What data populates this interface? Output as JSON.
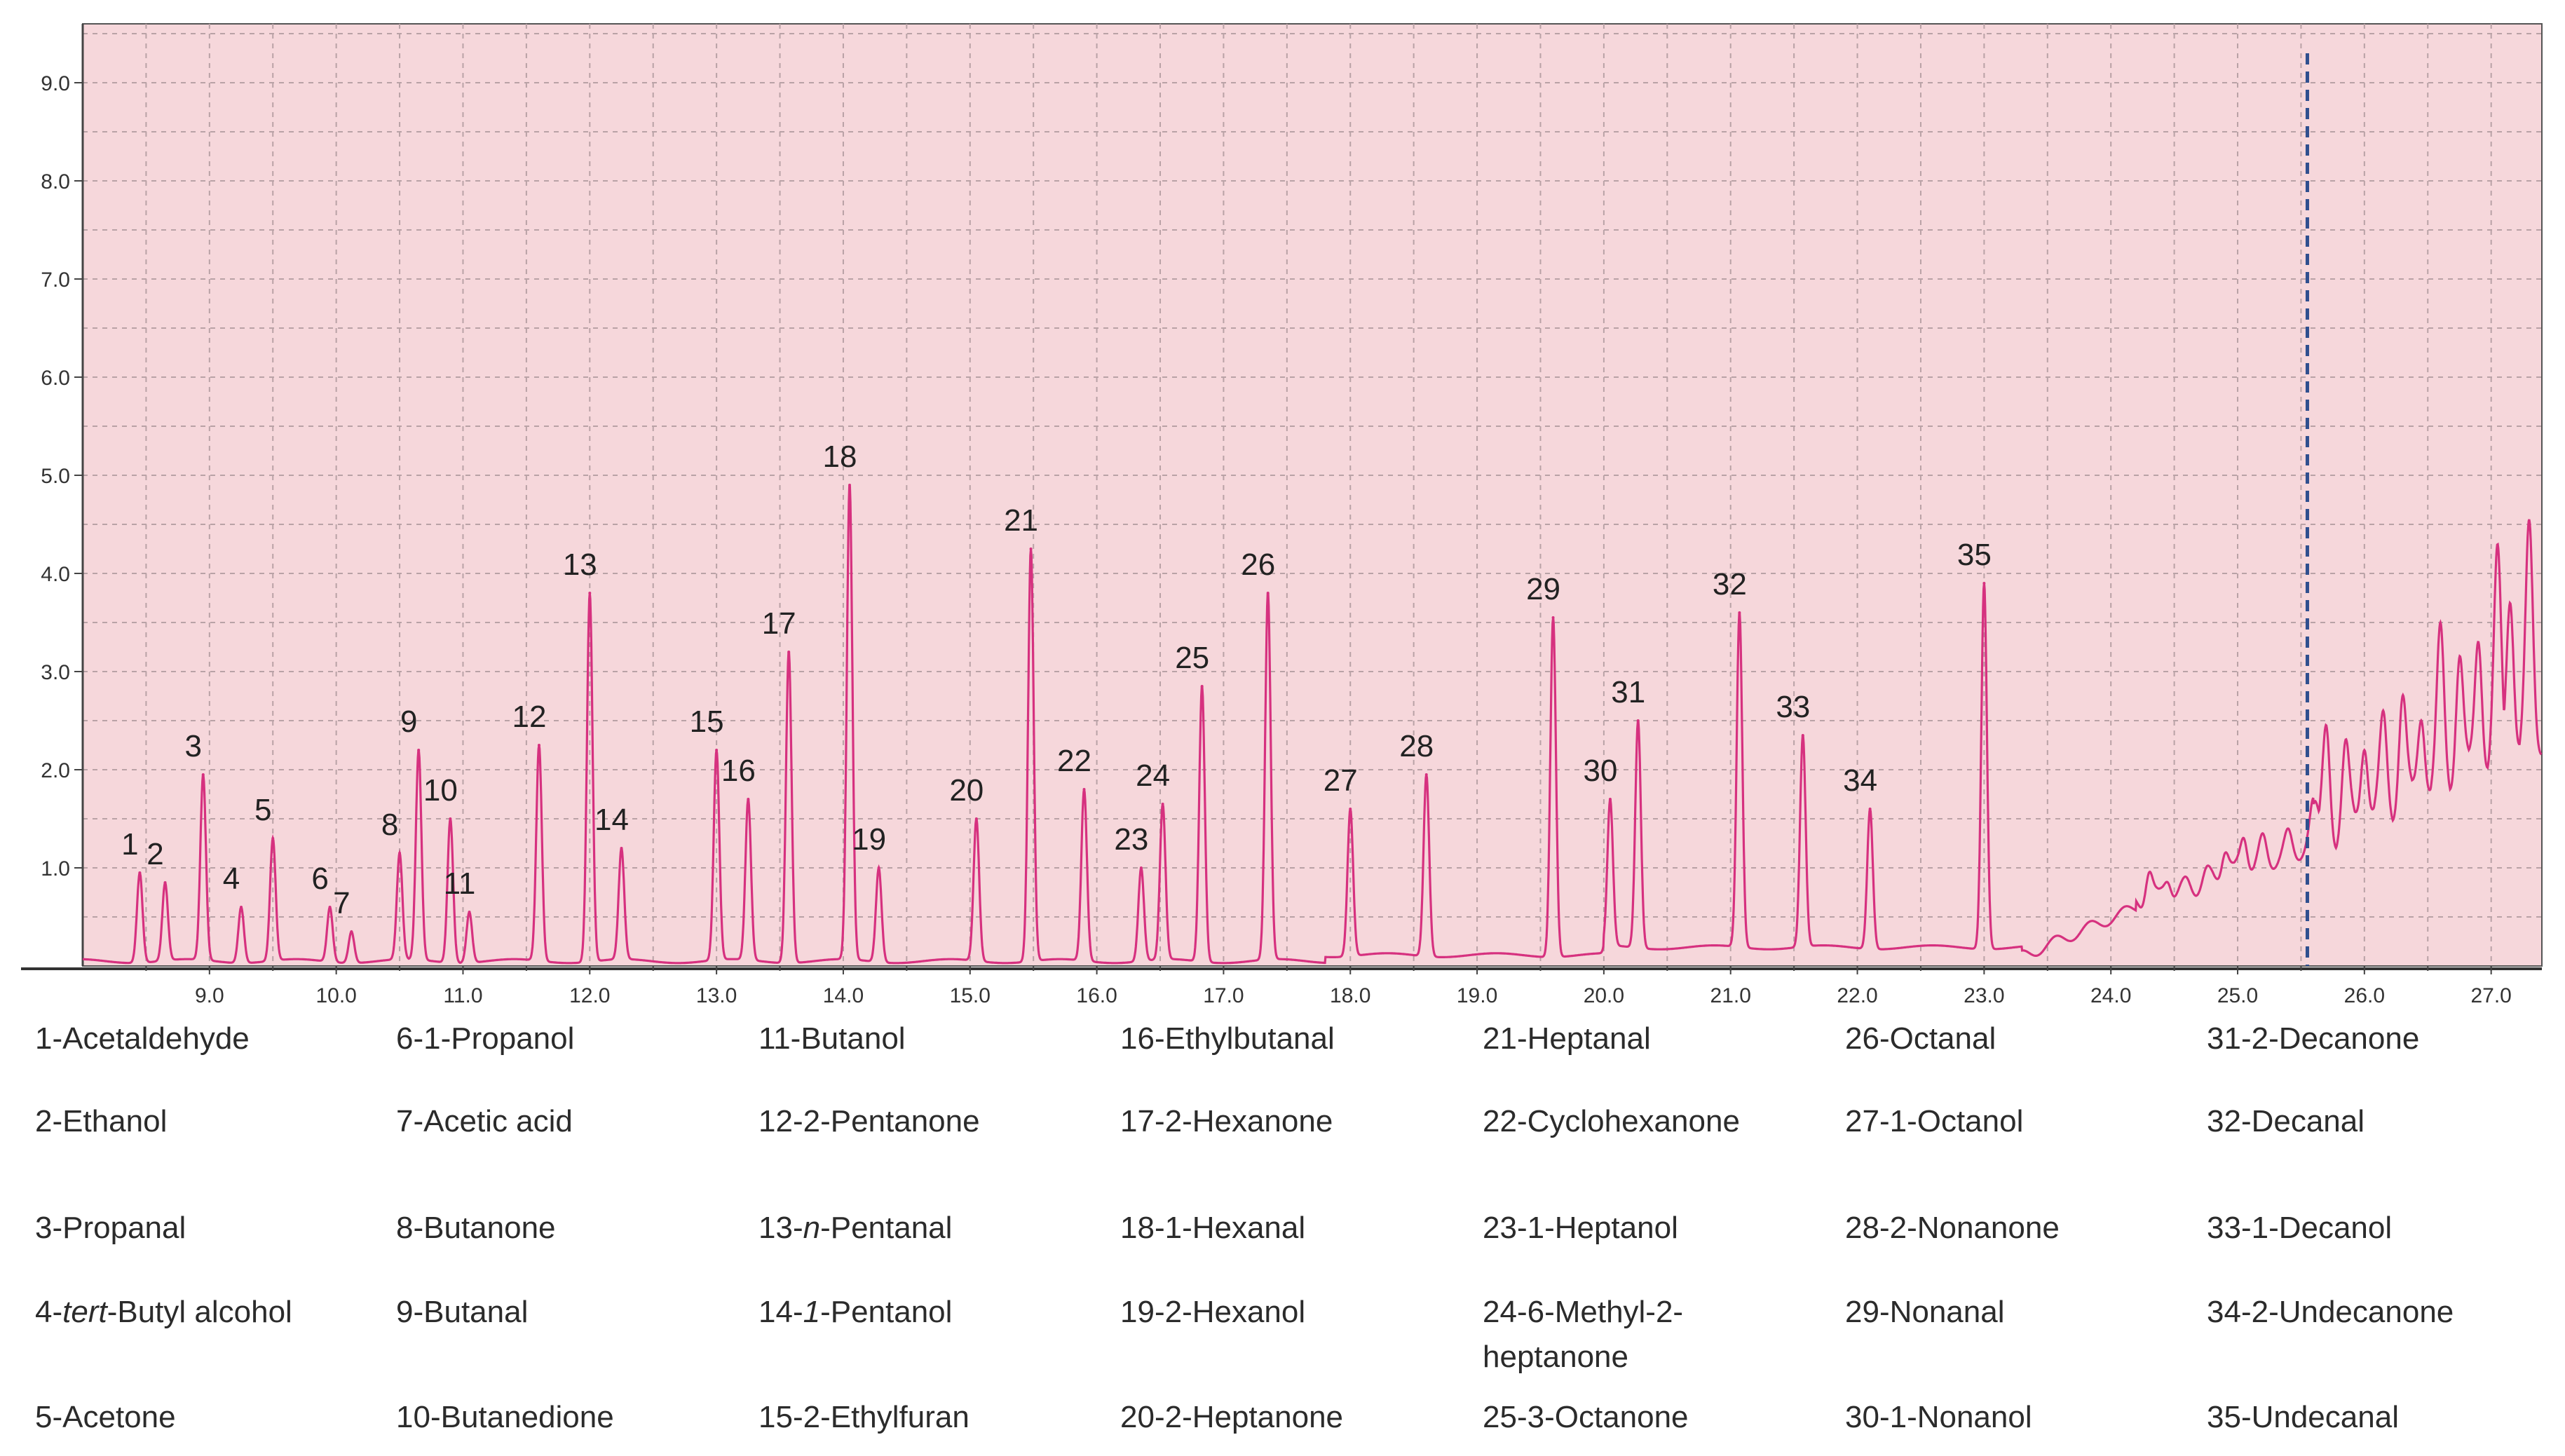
{
  "chart_data": {
    "type": "line",
    "title": "",
    "xlabel": "",
    "ylabel": "",
    "xlim": [
      8.0,
      27.4
    ],
    "ylim": [
      0,
      9.6
    ],
    "x_ticks": [
      9.0,
      10.0,
      11.0,
      12.0,
      13.0,
      14.0,
      15.0,
      16.0,
      17.0,
      18.0,
      19.0,
      20.0,
      21.0,
      22.0,
      23.0,
      24.0,
      25.0,
      26.0,
      27.0
    ],
    "x_tick_labels": [
      "9.0",
      "10.0",
      "11.0",
      "12.0",
      "13.0",
      "14.0",
      "15.0",
      "16.0",
      "17.0",
      "18.0",
      "19.0",
      "20.0",
      "21.0",
      "22.0",
      "23.0",
      "24.0",
      "25.0",
      "26.0",
      "27.0"
    ],
    "y_ticks": [
      1.0,
      2.0,
      3.0,
      4.0,
      5.0,
      6.0,
      7.0,
      8.0,
      9.0
    ],
    "y_tick_labels": [
      "1.0",
      "2.0",
      "3.0",
      "4.0",
      "5.0",
      "6.0",
      "7.0",
      "8.0",
      "9.0"
    ],
    "grid": true,
    "background": "#f6d7db",
    "line_color": "#d6317f",
    "marker_line_color": "#2f4f8f",
    "vertical_marker_x": 25.55,
    "peaks": [
      {
        "label": "1",
        "x": 8.45,
        "y": 0.95
      },
      {
        "label": "2",
        "x": 8.65,
        "y": 0.85
      },
      {
        "label": "3",
        "x": 8.95,
        "y": 1.95
      },
      {
        "label": "4",
        "x": 9.25,
        "y": 0.6
      },
      {
        "label": "5",
        "x": 9.5,
        "y": 1.3
      },
      {
        "label": "6",
        "x": 9.95,
        "y": 0.6
      },
      {
        "label": "7",
        "x": 10.12,
        "y": 0.35
      },
      {
        "label": "8",
        "x": 10.5,
        "y": 1.15
      },
      {
        "label": "9",
        "x": 10.65,
        "y": 2.2
      },
      {
        "label": "10",
        "x": 10.9,
        "y": 1.5
      },
      {
        "label": "11",
        "x": 11.05,
        "y": 0.55
      },
      {
        "label": "12",
        "x": 11.6,
        "y": 2.25
      },
      {
        "label": "13",
        "x": 12.0,
        "y": 3.8
      },
      {
        "label": "14",
        "x": 12.25,
        "y": 1.2
      },
      {
        "label": "15",
        "x": 13.0,
        "y": 2.2
      },
      {
        "label": "16",
        "x": 13.25,
        "y": 1.7
      },
      {
        "label": "17",
        "x": 13.57,
        "y": 3.2
      },
      {
        "label": "18",
        "x": 14.05,
        "y": 4.9
      },
      {
        "label": "19",
        "x": 14.28,
        "y": 1.0
      },
      {
        "label": "20",
        "x": 15.05,
        "y": 1.5
      },
      {
        "label": "21",
        "x": 15.48,
        "y": 4.25
      },
      {
        "label": "22",
        "x": 15.9,
        "y": 1.8
      },
      {
        "label": "23",
        "x": 16.35,
        "y": 1.0
      },
      {
        "label": "24",
        "x": 16.52,
        "y": 1.65
      },
      {
        "label": "25",
        "x": 16.83,
        "y": 2.85
      },
      {
        "label": "26",
        "x": 17.35,
        "y": 3.8
      },
      {
        "label": "27",
        "x": 18.0,
        "y": 1.6
      },
      {
        "label": "28",
        "x": 18.6,
        "y": 1.95
      },
      {
        "label": "29",
        "x": 19.6,
        "y": 3.55
      },
      {
        "label": "30",
        "x": 20.05,
        "y": 1.7
      },
      {
        "label": "31",
        "x": 20.27,
        "y": 2.5
      },
      {
        "label": "32",
        "x": 21.07,
        "y": 3.6
      },
      {
        "label": "33",
        "x": 21.57,
        "y": 2.35
      },
      {
        "label": "34",
        "x": 22.1,
        "y": 1.6
      },
      {
        "label": "35",
        "x": 23.0,
        "y": 3.9
      }
    ],
    "tail_peaks": [
      {
        "x": 24.3,
        "y": 0.95
      },
      {
        "x": 24.45,
        "y": 0.85
      },
      {
        "x": 24.6,
        "y": 0.9
      },
      {
        "x": 24.75,
        "y": 1.0
      },
      {
        "x": 24.9,
        "y": 1.15
      },
      {
        "x": 25.05,
        "y": 1.3
      },
      {
        "x": 25.2,
        "y": 1.35
      },
      {
        "x": 25.4,
        "y": 1.4
      },
      {
        "x": 25.6,
        "y": 1.65
      },
      {
        "x": 25.7,
        "y": 2.45
      },
      {
        "x": 25.85,
        "y": 2.3
      },
      {
        "x": 26.0,
        "y": 2.2
      },
      {
        "x": 26.15,
        "y": 2.6
      },
      {
        "x": 26.3,
        "y": 2.75
      },
      {
        "x": 26.45,
        "y": 2.5
      },
      {
        "x": 26.6,
        "y": 3.5
      },
      {
        "x": 26.75,
        "y": 3.15
      },
      {
        "x": 26.9,
        "y": 3.3
      },
      {
        "x": 27.05,
        "y": 4.3
      },
      {
        "x": 27.15,
        "y": 3.7
      },
      {
        "x": 27.3,
        "y": 4.55
      }
    ]
  },
  "legend": [
    [
      "1-Acetaldehyde",
      "2-Ethanol",
      "3-Propanal",
      "4-tert-Butyl alcohol",
      "5-Acetone"
    ],
    [
      "6-1-Propanol",
      "7-Acetic acid",
      "8-Butanone",
      "9-Butanal",
      "10-Butanedione"
    ],
    [
      "11-Butanol",
      "12-2-Pentanone",
      "13-n-Pentanal",
      "14-1-Pentanol",
      "15-2-Ethylfuran"
    ],
    [
      "16-Ethylbutanal",
      "17-2-Hexanone",
      "18-1-Hexanal",
      "19-2-Hexanol",
      "20-2-Heptanone"
    ],
    [
      "21-Heptanal",
      "22-Cyclohexanone",
      "23-1-Heptanol",
      "24-6-Methyl-2-heptanone",
      "25-3-Octanone"
    ],
    [
      "26-Octanal",
      "27-1-Octanol",
      "28-2-Nonanone",
      "29-Nonanal",
      "30-1-Nonanol"
    ],
    [
      "31-2-Decanone",
      "32-Decanal",
      "33-1-Decanol",
      "34-2-Undecanone",
      "35-Undecanal"
    ]
  ]
}
